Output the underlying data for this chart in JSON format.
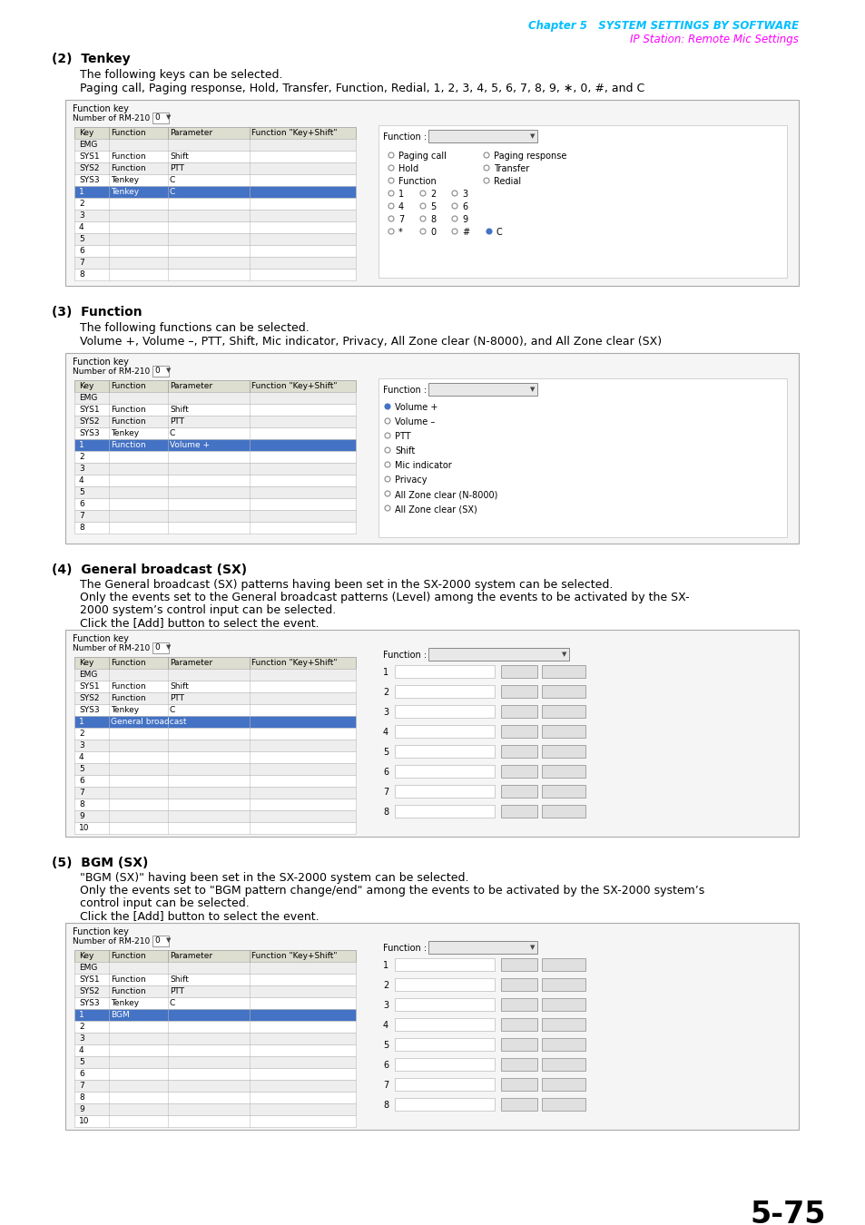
{
  "page_number": "5-75",
  "header_chapter": "Chapter 5   SYSTEM SETTINGS BY SOFTWARE",
  "header_sub": "IP Station: Remote Mic Settings",
  "header_chapter_color": "#00BFFF",
  "header_sub_color": "#FF00FF",
  "bg_color": "#FFFFFF",
  "section2_title": "(2)  Tenkey",
  "section2_line1": "The following keys can be selected.",
  "section2_line2": "Paging call, Paging response, Hold, Transfer, Function, Redial, 1, 2, 3, 4, 5, 6, 7, 8, 9, ∗, 0, #, and C",
  "section3_title": "(3)  Function",
  "section3_line1": "The following functions can be selected.",
  "section3_line2": "Volume +, Volume –, PTT, Shift, Mic indicator, Privacy, All Zone clear (N-8000), and All Zone clear (SX)",
  "section4_title": "(4)  General broadcast (SX)",
  "section4_line1": "The General broadcast (SX) patterns having been set in the SX-2000 system can be selected.",
  "section4_line2": "Only the events set to the General broadcast patterns (Level) among the events to be activated by the SX-",
  "section4_line3": "2000 system’s control input can be selected.",
  "section4_line4": "Click the [Add] button to select the event.",
  "section5_title": "(5)  BGM (SX)",
  "section5_line1": "\"BGM (SX)\" having been set in the SX-2000 system can be selected.",
  "section5_line2": "Only the events set to \"BGM pattern change/end\" among the events to be activated by the SX-2000 system’s",
  "section5_line3": "control input can be selected.",
  "section5_line4": "Click the [Add] button to select the event.",
  "panel_bg": "#F5F5F5",
  "panel_border": "#AAAAAA",
  "table_header_bg": "#DDDDD0",
  "row_alt_bg": "#EEEEEE",
  "row_white": "#FFFFFF",
  "selected_row_bg": "#4472C4",
  "selected_row_fg": "#FFFFFF",
  "button_bg": "#E0E0E0",
  "dropdown_bg": "#E8E8E8"
}
